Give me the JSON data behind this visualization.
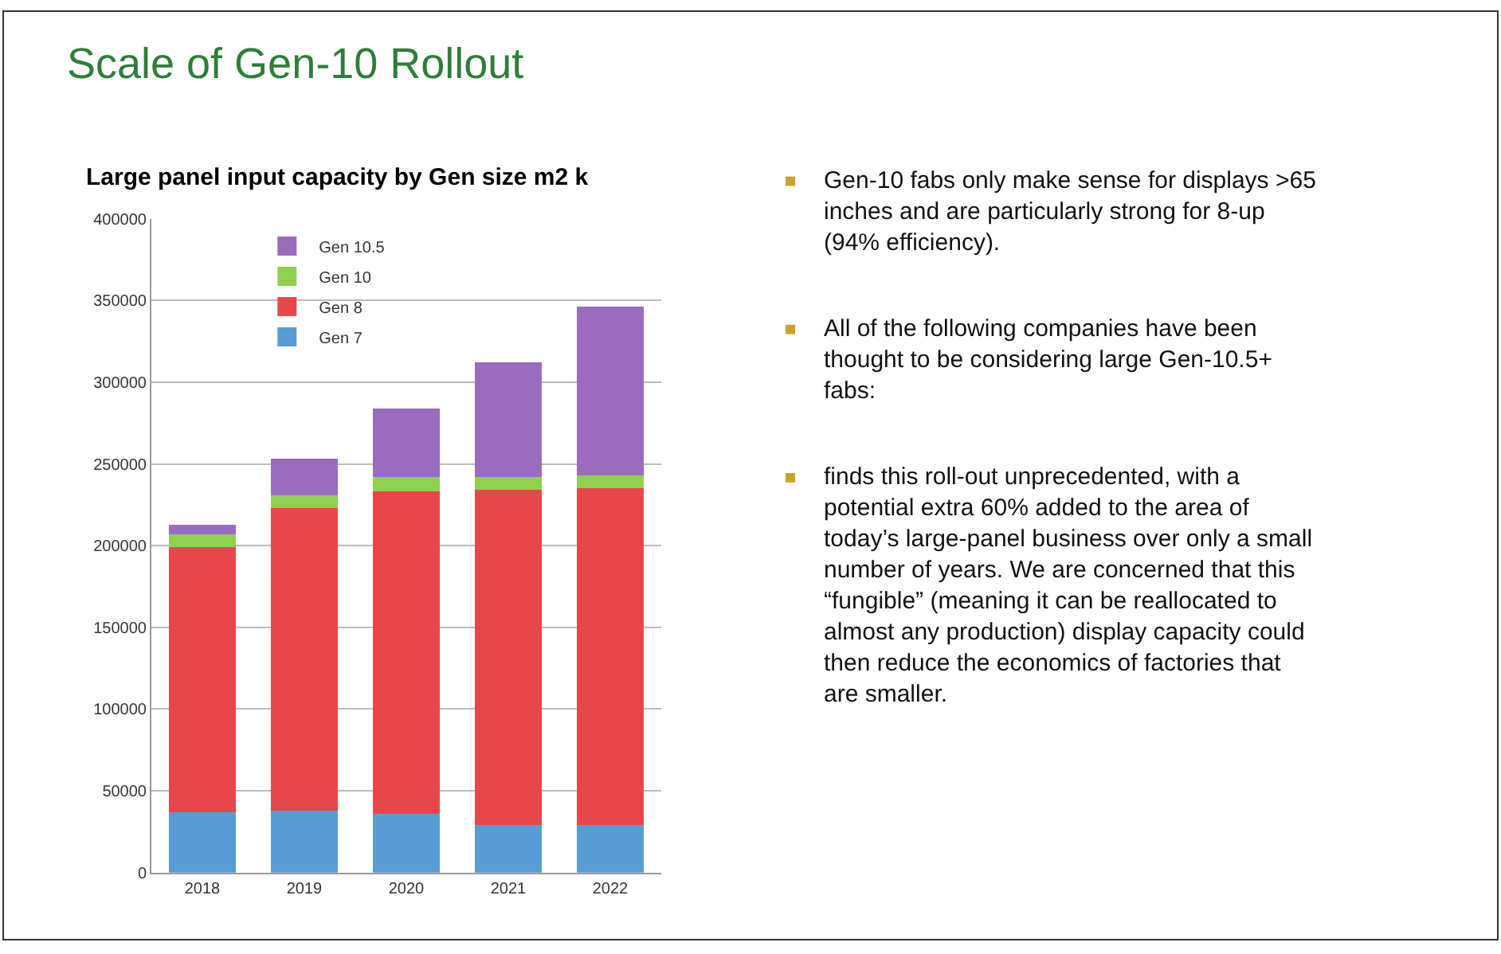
{
  "chart_data": {
    "type": "bar",
    "stacked": true,
    "title": "Scale of Gen-10 Rollout",
    "subtitle": "Large panel input capacity by Gen size m2 k",
    "categories": [
      "2018",
      "2019",
      "2020",
      "2021",
      "2022"
    ],
    "series": [
      {
        "name": "Gen 7",
        "color": "#5b9bd5",
        "values": [
          37000,
          38000,
          36000,
          29000,
          29000
        ]
      },
      {
        "name": "Gen 8",
        "color": "#e8474a",
        "values": [
          162000,
          185000,
          197000,
          205000,
          206000
        ]
      },
      {
        "name": "Gen 10",
        "color": "#8fd14f",
        "values": [
          8000,
          8000,
          9000,
          8000,
          8000
        ]
      },
      {
        "name": "Gen 10.5",
        "color": "#9b6bbf",
        "values": [
          6000,
          22000,
          42000,
          70000,
          103000
        ]
      }
    ],
    "ylim": [
      0,
      400000
    ],
    "yticks": [
      0,
      50000,
      100000,
      150000,
      200000,
      250000,
      300000,
      350000,
      400000
    ],
    "grid": "y",
    "legend": "top left",
    "annotations": [
      "Gen-10 fabs only make sense for displays >65 inches and are particularly strong for 8-up (94% efficiency).",
      "All of the following companies have been thought to be considering large Gen-10.5+ fabs:",
      "finds this roll-out unprecedented, with a potential extra 60% added to the area of today’s large-panel business over only a small number of years. We are concerned that this “fungible” (meaning it can be reallocated to almost any production) display capacity could then reduce the economics of factories that are smaller."
    ]
  }
}
